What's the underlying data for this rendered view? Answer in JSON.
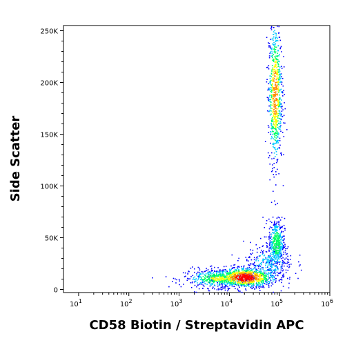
{
  "chart_data": {
    "type": "scatter",
    "subtype": "flow-cytometry density plot",
    "title": "",
    "xlabel": "CD58 Biotin / Streptavidin APC",
    "ylabel": "Side Scatter",
    "x_scale": "log",
    "y_scale": "linear",
    "xlim": [
      5,
      1000000
    ],
    "ylim": [
      -3000,
      255000
    ],
    "grid": false,
    "x_ticks": [
      {
        "value": 10,
        "base": "10",
        "exp": "1"
      },
      {
        "value": 100,
        "base": "10",
        "exp": "2"
      },
      {
        "value": 1000,
        "base": "10",
        "exp": "3"
      },
      {
        "value": 10000,
        "base": "10",
        "exp": "4"
      },
      {
        "value": 100000,
        "base": "10",
        "exp": "5"
      },
      {
        "value": 1000000,
        "base": "10",
        "exp": "6"
      }
    ],
    "y_ticks": [
      {
        "value": 0,
        "label": "0"
      },
      {
        "value": 50000,
        "label": "50K"
      },
      {
        "value": 100000,
        "label": "100K"
      },
      {
        "value": 150000,
        "label": "150K"
      },
      {
        "value": 200000,
        "label": "200K"
      },
      {
        "value": 250000,
        "label": "250K"
      }
    ],
    "density_colors": [
      "#0000ff",
      "#00c8ff",
      "#00ff66",
      "#ffff00",
      "#ff8800",
      "#ff0000"
    ],
    "populations": [
      {
        "x_center": 20000,
        "x_log_spread": 0.32,
        "y_center": 12000,
        "y_spread": 5000,
        "relative_density": 1.0
      },
      {
        "x_center": 6000,
        "x_log_spread": 0.35,
        "y_center": 11000,
        "y_spread": 4500,
        "relative_density": 0.55
      },
      {
        "x_center": 85000,
        "x_log_spread": 0.08,
        "y_center": 45000,
        "y_spread": 12000,
        "relative_density": 0.5
      },
      {
        "x_center": 80000,
        "x_log_spread": 0.07,
        "y_center": 190000,
        "y_spread": 35000,
        "relative_density": 0.8
      },
      {
        "x_center": 60000,
        "x_log_spread": 0.25,
        "y_center": 25000,
        "y_spread": 10000,
        "relative_density": 0.3
      }
    ]
  }
}
